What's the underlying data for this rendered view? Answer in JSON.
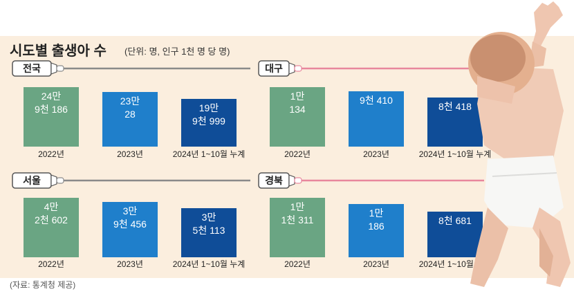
{
  "title": "시도별 출생아 수",
  "unit_note": "(단위: 명, 인구 1천 명 당 명)",
  "source": "(자료: 통계청 제공)",
  "colors": {
    "bar_2022": "#6aa583",
    "bar_2023": "#1f7fcb",
    "bar_2024": "#0f4d98",
    "panel_bg": "#fbeede",
    "gray_line": "#8a8a8a",
    "pink_line": "#e8879d"
  },
  "chart_data": [
    {
      "type": "bar",
      "region": "전국",
      "categories": [
        "2022년",
        "2023년",
        "2024년 1~10월 누계"
      ],
      "values": [
        249186,
        230028,
        199999
      ],
      "value_labels": [
        [
          "24만",
          "9천 186"
        ],
        [
          "23만",
          "28"
        ],
        [
          "19만",
          "9천 999"
        ]
      ]
    },
    {
      "type": "bar",
      "region": "대구",
      "categories": [
        "2022년",
        "2023년",
        "2024년 1~10월 누계"
      ],
      "values": [
        10134,
        9410,
        8418
      ],
      "value_labels": [
        [
          "1만",
          "134"
        ],
        [
          "9천 410"
        ],
        [
          "8천 418"
        ]
      ]
    },
    {
      "type": "bar",
      "region": "서울",
      "categories": [
        "2022년",
        "2023년",
        "2024년 1~10월 누계"
      ],
      "values": [
        42602,
        39456,
        35113
      ],
      "value_labels": [
        [
          "4만",
          "2천 602"
        ],
        [
          "3만",
          "9천 456"
        ],
        [
          "3만",
          "5천 113"
        ]
      ]
    },
    {
      "type": "bar",
      "region": "경북",
      "categories": [
        "2022년",
        "2023년",
        "2024년 1~10월 누계"
      ],
      "values": [
        11311,
        10186,
        8681
      ],
      "value_labels": [
        [
          "1만",
          "1천 311"
        ],
        [
          "1만",
          "186"
        ],
        [
          "8천 681"
        ]
      ]
    }
  ]
}
